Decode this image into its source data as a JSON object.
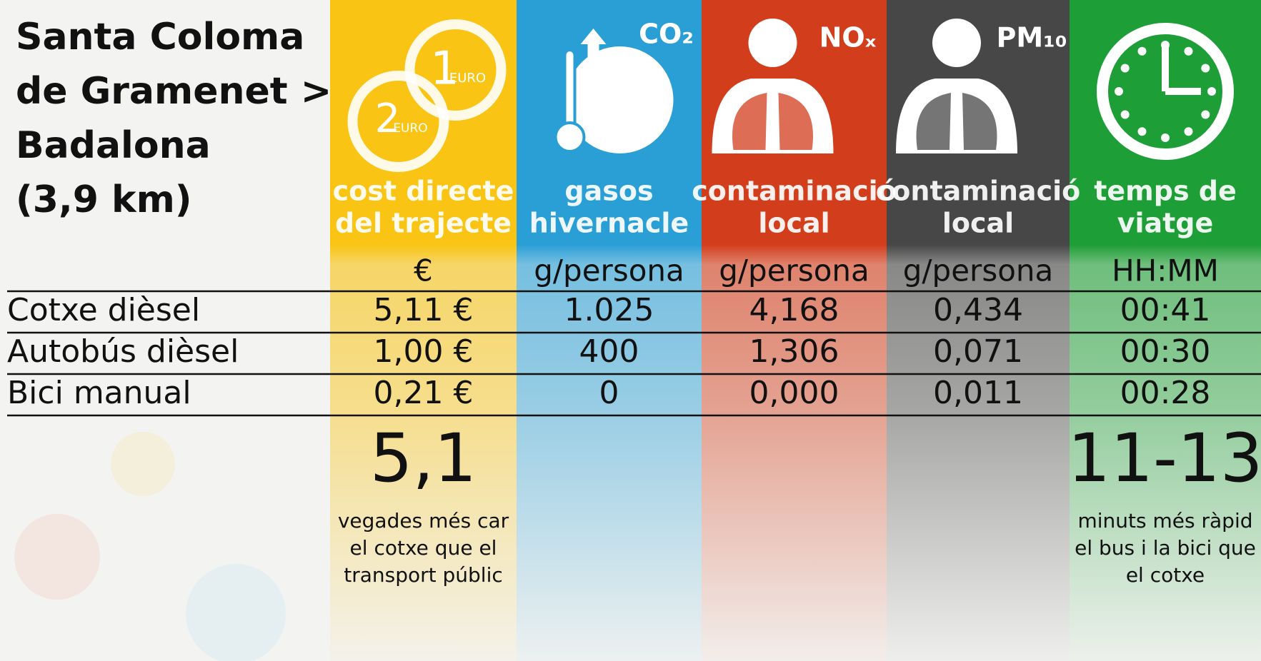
{
  "title_lines": [
    "Santa Coloma",
    "de Gramenet >",
    "Badalona",
    "(3,9 km)"
  ],
  "columns": [
    {
      "icon_texts": [
        "1",
        "EURO",
        "2",
        "EURO"
      ],
      "heading_lines": [
        "cost directe",
        "del trajecte"
      ],
      "unit": "€",
      "color": "#f9c413",
      "note": {
        "big": "5,1",
        "lines": [
          "vegades més car",
          "el cotxe que el",
          "transport públic"
        ]
      }
    },
    {
      "icon_texts": [
        "CO₂"
      ],
      "heading_lines": [
        "gasos",
        "hivernacle"
      ],
      "unit": "g/persona",
      "color": "#2a9fd6"
    },
    {
      "icon_texts": [
        "NOₓ"
      ],
      "heading_lines": [
        "contaminació",
        "local"
      ],
      "unit": "g/persona",
      "color": "#d23e1c"
    },
    {
      "icon_texts": [
        "PM₁₀"
      ],
      "heading_lines": [
        "contaminació",
        "local"
      ],
      "unit": "g/persona",
      "color": "#474747"
    },
    {
      "icon_texts": [],
      "heading_lines": [
        "temps de",
        "viatge"
      ],
      "unit": "HH:MM",
      "color": "#1e9e36",
      "note": {
        "big": "11-13",
        "lines": [
          "minuts més ràpid",
          "el bus i la bici que",
          "el cotxe"
        ]
      }
    }
  ],
  "rows": [
    {
      "label": "Cotxe dièsel",
      "cells": [
        "5,11 €",
        "1.025",
        "4,168",
        "0,434",
        "00:41"
      ]
    },
    {
      "label": "Autobús dièsel",
      "cells": [
        "1,00 €",
        "400",
        "1,306",
        "0,071",
        "00:30"
      ]
    },
    {
      "label": "Bici manual",
      "cells": [
        "0,21 €",
        "0",
        "0,000",
        "0,011",
        "00:28"
      ]
    }
  ]
}
